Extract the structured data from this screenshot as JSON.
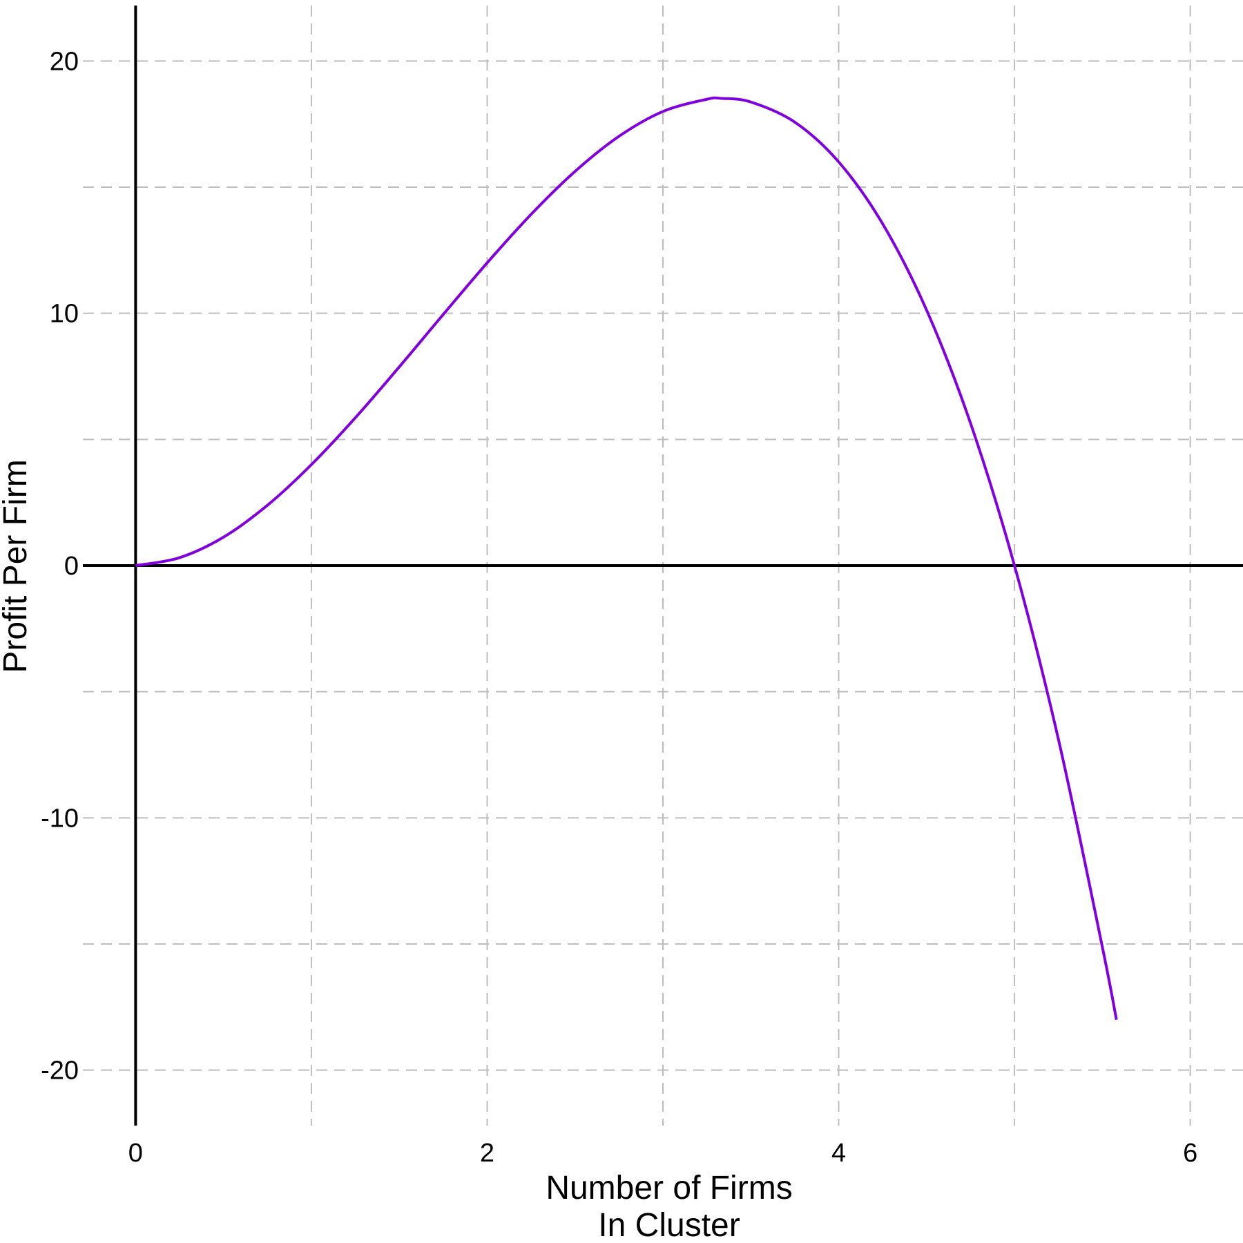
{
  "chart_data": {
    "type": "line",
    "title": "",
    "xlabel": [
      "Number of Firms",
      "In Cluster"
    ],
    "ylabel": "Profit Per Firm",
    "xlim": [
      -0.3,
      6.3
    ],
    "ylim": [
      -22.2,
      22.2
    ],
    "x_ticks": [
      0,
      2,
      4,
      6
    ],
    "x_tick_labels": [
      "0",
      "2",
      "4",
      "6"
    ],
    "y_ticks": [
      -20,
      -10,
      0,
      10,
      20
    ],
    "y_tick_labels": [
      "-20",
      "-10",
      "0",
      "10",
      "20"
    ],
    "x_grid": [
      0,
      1,
      2,
      3,
      4,
      5,
      6
    ],
    "y_grid": [
      -20,
      -15,
      -10,
      -5,
      0,
      5,
      10,
      15,
      20
    ],
    "grid": true,
    "zero_axes": true,
    "legend": "none",
    "series": [
      {
        "color": "#8000e0",
        "x": [
          0,
          0.25,
          0.5,
          0.75,
          1,
          1.25,
          1.5,
          1.75,
          2,
          2.25,
          2.5,
          2.75,
          3,
          3.25,
          3.333,
          3.5,
          3.75,
          4,
          4.25,
          4.5,
          4.75,
          5,
          5.25,
          5.5,
          5.58
        ],
        "y": [
          0,
          0.3125,
          1.125,
          2.3906,
          4.0,
          5.8594,
          7.875,
          9.9531,
          12.0,
          13.9219,
          15.625,
          17.0156,
          18.0,
          18.4844,
          18.5185,
          18.375,
          17.5781,
          16.0,
          13.5469,
          10.125,
          5.6406,
          0.0,
          -6.8906,
          -15.125,
          -18.0
        ]
      }
    ]
  }
}
